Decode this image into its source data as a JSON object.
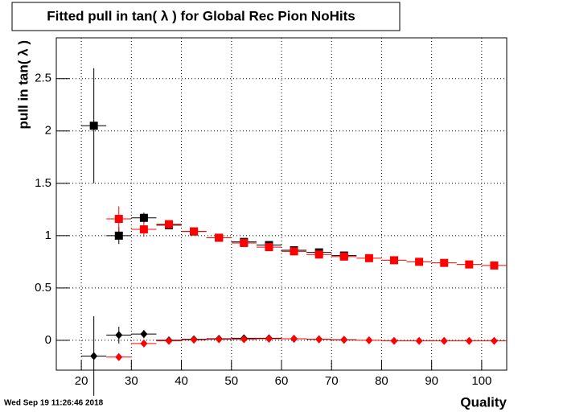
{
  "chart_data": {
    "type": "errorbar",
    "title": "Fitted pull in tan( λ ) for Global Rec Pion NoHits",
    "x_label": "Quality",
    "y_label": "pull in tan( λ )",
    "timestamp": "Wed Sep 19 11:26:46 2018",
    "xlim": [
      15,
      105
    ],
    "ylim": [
      -0.285,
      2.89
    ],
    "xticks": [
      20,
      30,
      40,
      50,
      60,
      70,
      80,
      90,
      100
    ],
    "yticks": [
      0,
      0.5,
      1,
      1.5,
      2,
      2.5
    ],
    "grid": true,
    "series": [
      {
        "marker": "square",
        "color": "#000000",
        "xerr": 2.5,
        "x": [
          22.5,
          27.5,
          32.5,
          37.5,
          42.5,
          47.5,
          52.5,
          57.5,
          62.5,
          67.5,
          72.5
        ],
        "values": [
          2.05,
          1.0,
          1.17,
          1.1,
          1.04,
          0.98,
          0.94,
          0.91,
          0.86,
          0.84,
          0.81
        ],
        "yerr": [
          0.55,
          0.08,
          0.05,
          0.03,
          0.03,
          0.02,
          0.02,
          0.02,
          0.02,
          0.02,
          0.02
        ]
      },
      {
        "marker": "square",
        "color": "#ff0000",
        "xerr": 2.5,
        "x": [
          27.5,
          32.5,
          37.5,
          42.5,
          47.5,
          52.5,
          57.5,
          62.5,
          67.5,
          72.5,
          77.5,
          82.5,
          87.5,
          92.5,
          97.5,
          102.5
        ],
        "values": [
          1.16,
          1.06,
          1.11,
          1.04,
          0.98,
          0.93,
          0.89,
          0.85,
          0.82,
          0.8,
          0.785,
          0.765,
          0.75,
          0.74,
          0.725,
          0.715
        ],
        "yerr": [
          0.12,
          0.07,
          0.03,
          0.02,
          0.02,
          0.02,
          0.01,
          0.01,
          0.01,
          0.01,
          0.01,
          0.01,
          0.01,
          0.01,
          0.01,
          0.01
        ]
      },
      {
        "marker": "diamond",
        "color": "#000000",
        "xerr": 2.5,
        "x": [
          22.5,
          27.5,
          32.5,
          37.5,
          42.5,
          47.5,
          52.5,
          57.5,
          62.5,
          67.5,
          72.5
        ],
        "values": [
          -0.15,
          0.05,
          0.06,
          0.0,
          0.01,
          0.015,
          0.02,
          0.02,
          0.015,
          0.01,
          0.005
        ],
        "yerr": [
          0.38,
          0.08,
          0.04,
          0.02,
          0.01,
          0.01,
          0.01,
          0.01,
          0.01,
          0.01,
          0.01
        ]
      },
      {
        "marker": "diamond",
        "color": "#ff0000",
        "xerr": 2.5,
        "x": [
          27.5,
          32.5,
          37.5,
          42.5,
          47.5,
          52.5,
          57.5,
          62.5,
          67.5,
          72.5,
          77.5,
          82.5,
          87.5,
          92.5,
          97.5,
          102.5
        ],
        "values": [
          -0.16,
          -0.03,
          -0.005,
          0.005,
          0.01,
          0.01,
          0.015,
          0.015,
          0.01,
          0.005,
          0.0,
          -0.005,
          -0.005,
          -0.005,
          -0.005,
          -0.005
        ],
        "yerr": [
          0.03,
          0.03,
          0.01,
          0.01,
          0.01,
          0.01,
          0.01,
          0.01,
          0.01,
          0.01,
          0.01,
          0.01,
          0.01,
          0.01,
          0.01,
          0.01
        ]
      }
    ]
  }
}
